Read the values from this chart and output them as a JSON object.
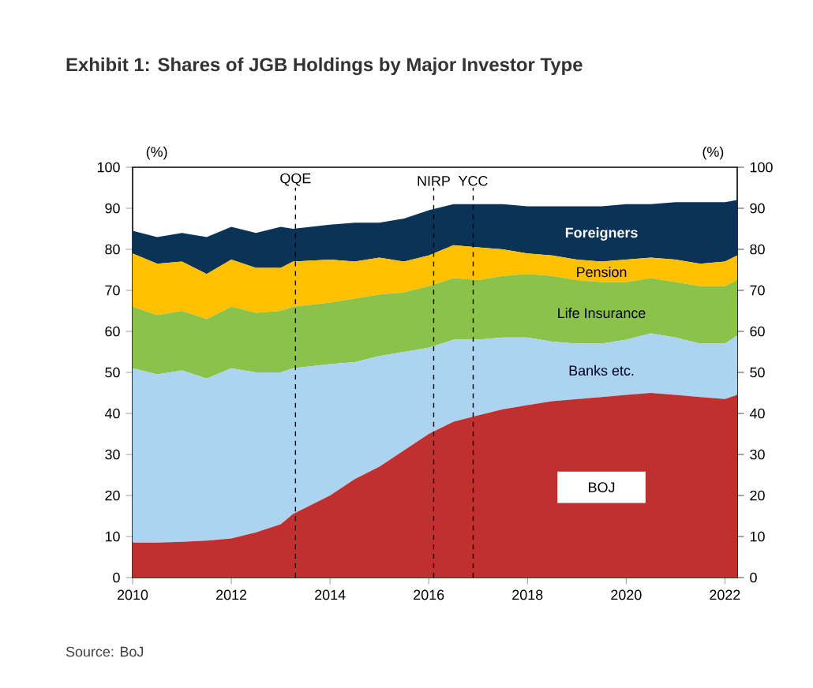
{
  "chart_data": {
    "type": "area",
    "stacked": true,
    "title": "Exhibit 1: Shares of JGB Holdings by Major Investor Type",
    "ylabel": "(%)",
    "y2label": "(%)",
    "x": [
      2010,
      2010.5,
      2011,
      2011.5,
      2012,
      2012.5,
      2013,
      2013.25,
      2014,
      2014.5,
      2015,
      2015.5,
      2016,
      2016.5,
      2017,
      2017.5,
      2018,
      2018.5,
      2019,
      2019.5,
      2020,
      2020.5,
      2021,
      2021.5,
      2022,
      2022.25
    ],
    "series": [
      {
        "name": "BOJ",
        "color": "#c0302f",
        "values": [
          8.5,
          8.5,
          8.7,
          9,
          9.5,
          11,
          13,
          15.5,
          20,
          24,
          27,
          31,
          35,
          38,
          39.5,
          41,
          42,
          43,
          43.5,
          44,
          44.5,
          45,
          44.5,
          44,
          43.5,
          44.5
        ]
      },
      {
        "name": "Banks etc.",
        "color": "#acd3f0",
        "values": [
          42.5,
          41,
          41.8,
          39.5,
          41.5,
          39,
          37,
          35.5,
          32,
          28.5,
          27,
          24,
          21,
          20,
          18.5,
          17.5,
          16.5,
          14.5,
          13.5,
          13,
          13.5,
          14.5,
          14,
          13,
          13.5,
          14.5
        ]
      },
      {
        "name": "Life Insurance",
        "color": "#8bc34a",
        "values": [
          15,
          14.5,
          14.5,
          14.5,
          15,
          14.5,
          15,
          15,
          15,
          15.5,
          15,
          14.5,
          15,
          15,
          14.5,
          15,
          15.5,
          16,
          15.5,
          15,
          14,
          13.5,
          13.5,
          14,
          14,
          13.5
        ]
      },
      {
        "name": "Pension",
        "color": "#ffc000",
        "values": [
          13,
          12.5,
          12,
          11,
          11.5,
          11,
          10.5,
          11,
          10.5,
          9,
          9,
          7.5,
          7.5,
          8,
          8,
          6.5,
          5,
          5,
          5,
          5,
          5.5,
          5,
          5.5,
          5.5,
          6,
          6
        ]
      },
      {
        "name": "Foreigners",
        "color": "#0b3358",
        "values": [
          5.5,
          6.5,
          7,
          9,
          8,
          8.5,
          10,
          8,
          8.5,
          9.5,
          8.5,
          10.5,
          11,
          10,
          10.5,
          11,
          11.5,
          12,
          13,
          13.5,
          13.5,
          13,
          14,
          15,
          14.5,
          13.5
        ]
      }
    ],
    "xlim": [
      2010,
      2022.25
    ],
    "xticks": [
      2010,
      2012,
      2014,
      2016,
      2018,
      2020,
      2022
    ],
    "ylim": [
      0,
      100
    ],
    "yticks": [
      0,
      10,
      20,
      30,
      40,
      50,
      60,
      70,
      80,
      90,
      100
    ],
    "y2lim": [
      0,
      100
    ],
    "y2ticks": [
      0,
      10,
      20,
      30,
      40,
      50,
      60,
      70,
      80,
      90,
      100
    ],
    "ref_lines": [
      {
        "axis": "x",
        "value": 2013.3,
        "label": "QQE",
        "color": "#000000",
        "line_style": "dashed"
      },
      {
        "axis": "x",
        "value": 2016.1,
        "label": "NIRP",
        "color": "#000000",
        "line_style": "dashed"
      },
      {
        "axis": "x",
        "value": 2016.9,
        "label": "YCC",
        "color": "#000000",
        "line_style": "dashed"
      }
    ],
    "annotations": [
      "Source: BoJ"
    ]
  }
}
